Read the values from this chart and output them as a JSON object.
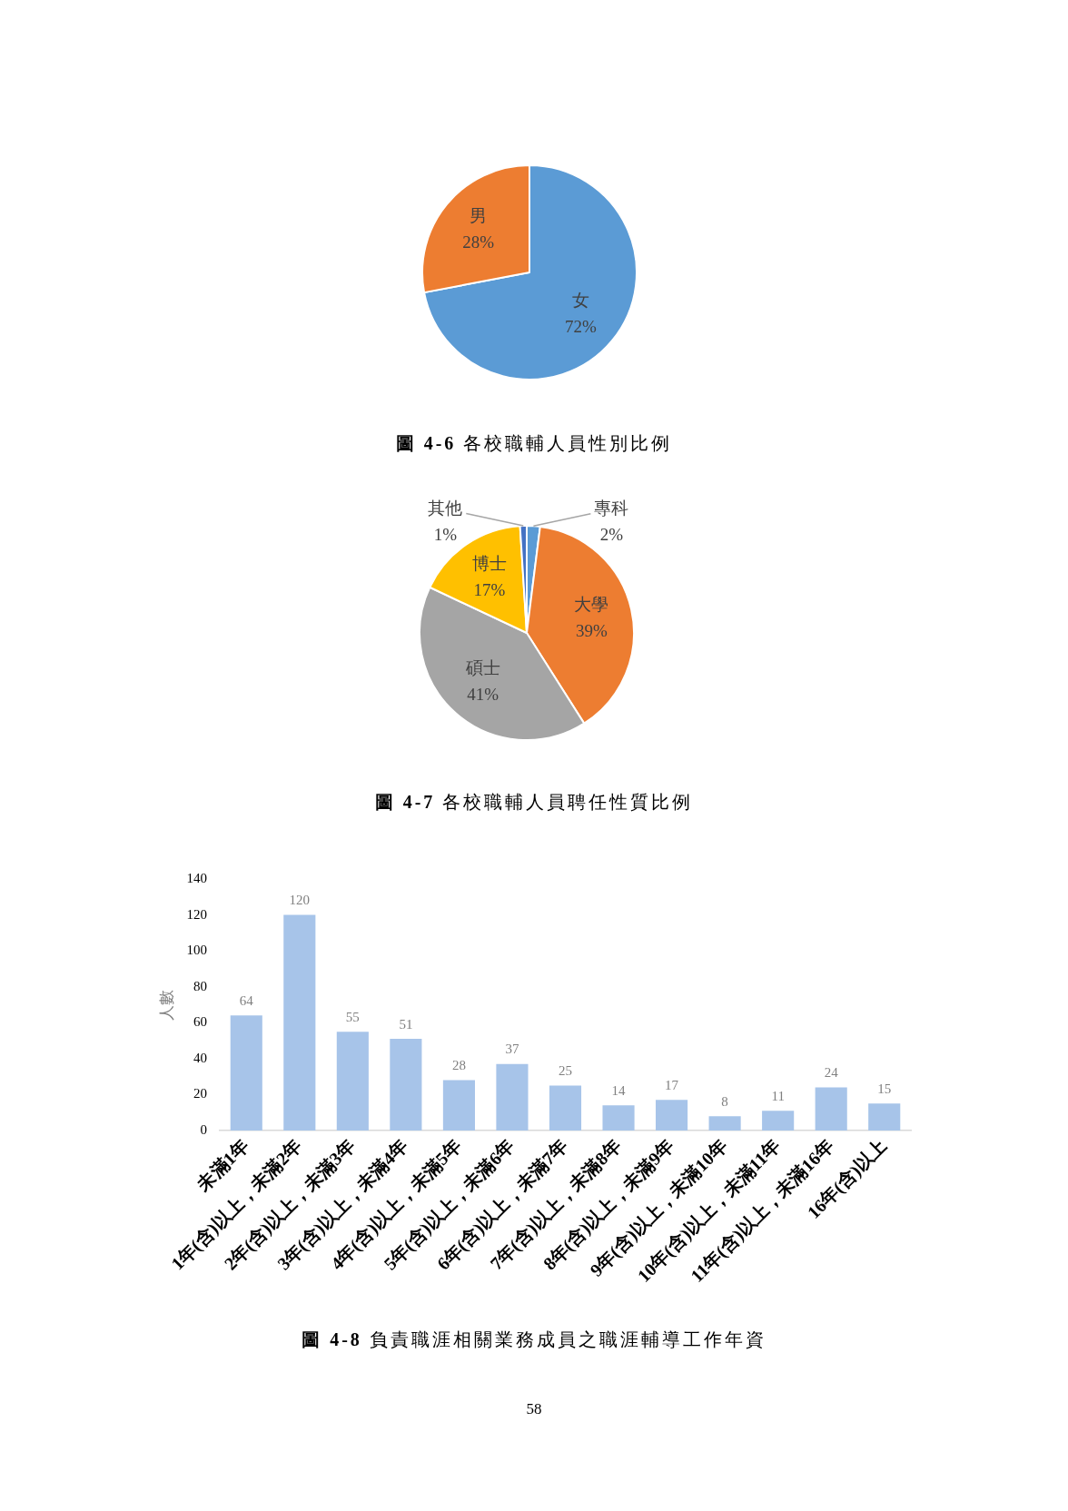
{
  "chart_data": [
    {
      "type": "pie",
      "title": "圖 4-6 各校職輔人員性別比例",
      "categories": [
        "女",
        "男"
      ],
      "values": [
        72,
        28
      ],
      "colors": [
        "#5b9bd5",
        "#ed7d31"
      ],
      "value_labels": [
        "72%",
        "28%"
      ],
      "legend": false
    },
    {
      "type": "pie",
      "title": "圖 4-7 各校職輔人員聘任性質比例",
      "categories": [
        "專科",
        "大學",
        "碩士",
        "博士",
        "其他"
      ],
      "values": [
        2,
        39,
        41,
        17,
        1
      ],
      "colors": [
        "#5b9bd5",
        "#ed7d31",
        "#a5a5a5",
        "#ffc000",
        "#4472c4"
      ],
      "value_labels": [
        "2%",
        "39%",
        "41%",
        "17%",
        "1%"
      ],
      "legend": false
    },
    {
      "type": "bar",
      "title": "圖 4-8 負責職涯相關業務成員之職涯輔導工作年資",
      "ylabel": "人數",
      "categories": [
        "未滿1年",
        "1年(含)以上，未滿2年",
        "2年(含)以上，未滿3年",
        "3年(含)以上，未滿4年",
        "4年(含)以上，未滿5年",
        "5年(含)以上，未滿6年",
        "6年(含)以上，未滿7年",
        "7年(含)以上，未滿8年",
        "8年(含)以上，未滿9年",
        "9年(含)以上，未滿10年",
        "10年(含)以上，未滿11年",
        "11年(含)以上，未滿16年",
        "16年(含)以上"
      ],
      "values": [
        64,
        120,
        55,
        51,
        28,
        37,
        25,
        14,
        17,
        8,
        11,
        24,
        15
      ],
      "color": "#a7c4e9",
      "ylim": [
        0,
        140
      ],
      "yticks": [
        0,
        20,
        40,
        60,
        80,
        100,
        120,
        140
      ],
      "grid": false,
      "data_labels": true,
      "legend": false,
      "annotations": [
        "58"
      ]
    }
  ]
}
